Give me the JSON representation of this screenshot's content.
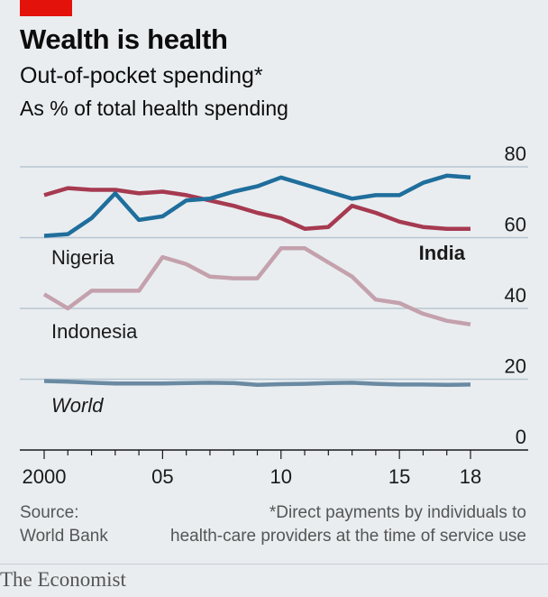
{
  "header": {
    "title": "Wealth is health",
    "subtitle": "Out-of-pocket spending*",
    "units": "As % of total health spending"
  },
  "footer": {
    "source_line1": "Source:",
    "source_line2": "World Bank",
    "note_line1": "*Direct payments by individuals to",
    "note_line2": "health-care providers at the time of service use"
  },
  "brand": "The Economist",
  "colors": {
    "background": "#e9edf0",
    "gridline": "#b7c6d1",
    "axis": "#1a1a1a",
    "tag": "#e3120b"
  },
  "chart_data": {
    "type": "line",
    "title": "Wealth is health",
    "subtitle": "Out-of-pocket spending*",
    "ylabel": "As % of total health spending",
    "x": [
      2000,
      2001,
      2002,
      2003,
      2004,
      2005,
      2006,
      2007,
      2008,
      2009,
      2010,
      2011,
      2012,
      2013,
      2014,
      2015,
      2016,
      2017,
      2018
    ],
    "xticks": [
      2000,
      2005,
      2010,
      2015,
      2018
    ],
    "xtick_labels": [
      "2000",
      "05",
      "10",
      "15",
      "18"
    ],
    "xlim": [
      2000,
      2018
    ],
    "ylim": [
      0,
      80
    ],
    "yticks": [
      0,
      20,
      40,
      60,
      80
    ],
    "ytick_labels": [
      "0",
      "20",
      "40",
      "60",
      "80"
    ],
    "grid": true,
    "legend": "direct labels",
    "series": [
      {
        "name": "India",
        "color": "#a63a50",
        "bold": true,
        "values": [
          72,
          74,
          73.5,
          73.5,
          72.5,
          73,
          72,
          70.5,
          69,
          67,
          65.5,
          62.5,
          63,
          69,
          67,
          64.5,
          63,
          62.5,
          62.5
        ]
      },
      {
        "name": "Nigeria",
        "color": "#1f6e9c",
        "bold": false,
        "values": [
          60.5,
          61,
          65.5,
          72.5,
          65,
          66,
          70.5,
          71,
          73,
          74.5,
          77,
          75,
          73,
          71,
          72,
          72,
          75.5,
          77.5,
          77
        ]
      },
      {
        "name": "Indonesia",
        "color": "#c4a1ac",
        "bold": false,
        "values": [
          44,
          40,
          45,
          45,
          45,
          54.5,
          52.5,
          49,
          48.5,
          48.5,
          57,
          57,
          53,
          49,
          42.5,
          41.5,
          38.5,
          36.5,
          35.5
        ]
      },
      {
        "name": "World",
        "color": "#6a8aa3",
        "italic": true,
        "values": [
          19.5,
          19.3,
          19,
          18.8,
          18.8,
          18.8,
          18.9,
          19,
          18.9,
          18.4,
          18.6,
          18.7,
          18.9,
          19,
          18.7,
          18.5,
          18.5,
          18.4,
          18.5
        ]
      }
    ]
  }
}
